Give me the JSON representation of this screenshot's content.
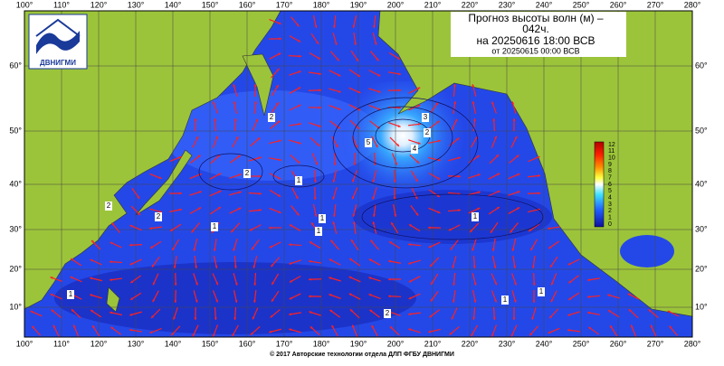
{
  "header": {
    "title_lines": [
      "Прогноз высоты волн (м) –",
      "042ч.",
      "на 20250616 18:00 ВСВ"
    ],
    "subtitle": "от 20250615 00:00 ВСВ"
  },
  "logo": {
    "text": "ДВНИГМИ"
  },
  "longitude_labels": [
    "100°",
    "110°",
    "120°",
    "130°",
    "140°",
    "150°",
    "160°",
    "170°",
    "180°",
    "190°",
    "200°",
    "210°",
    "220°",
    "230°",
    "240°",
    "250°",
    "260°",
    "270°",
    "280°"
  ],
  "latitude_labels": [
    "60°",
    "50°",
    "40°",
    "30°",
    "20°",
    "10°"
  ],
  "colorbar_labels": [
    "12",
    "11",
    "10",
    "9",
    "8",
    "7",
    "6",
    "5",
    "4",
    "3",
    "2",
    "1",
    "0"
  ],
  "contour_labels": [
    "2",
    "2",
    "1",
    "2",
    "2",
    "1",
    "1",
    "1",
    "1",
    "1",
    "2",
    "1",
    "1",
    "3",
    "4",
    "5",
    "2"
  ],
  "footer": "© 2017 Авторские технологии отдела ДЛП ФГБУ ДВНИГМИ"
}
